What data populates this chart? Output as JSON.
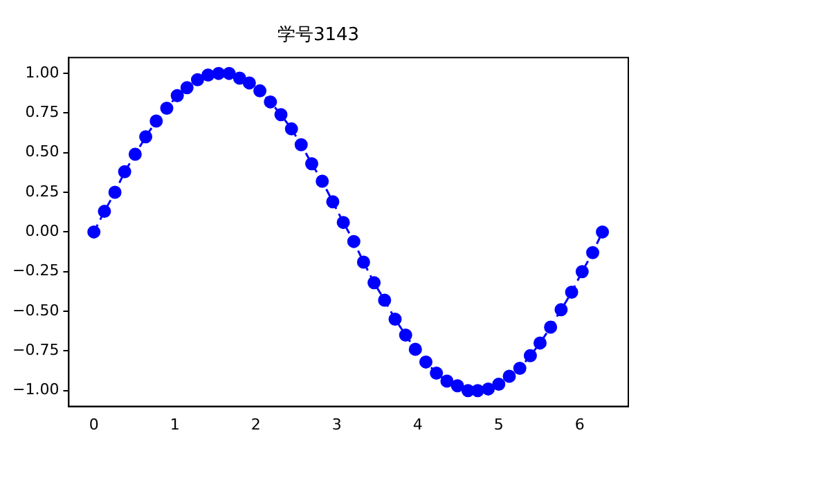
{
  "chart_data": {
    "type": "line",
    "title": "学号3143",
    "x": [
      0,
      0.13,
      0.26,
      0.38,
      0.51,
      0.64,
      0.77,
      0.9,
      1.03,
      1.15,
      1.28,
      1.41,
      1.54,
      1.67,
      1.8,
      1.92,
      2.05,
      2.18,
      2.31,
      2.44,
      2.56,
      2.69,
      2.82,
      2.95,
      3.08,
      3.21,
      3.33,
      3.46,
      3.59,
      3.72,
      3.85,
      3.97,
      4.1,
      4.23,
      4.36,
      4.49,
      4.62,
      4.74,
      4.87,
      5,
      5.13,
      5.26,
      5.39,
      5.51,
      5.64,
      5.77,
      5.9,
      6.03,
      6.16,
      6.28
    ],
    "series": [
      {
        "color": "#0000ff",
        "values": [
          0,
          0.13,
          0.25,
          0.38,
          0.49,
          0.6,
          0.7,
          0.78,
          0.86,
          0.91,
          0.96,
          0.99,
          1,
          1,
          0.97,
          0.94,
          0.89,
          0.82,
          0.74,
          0.65,
          0.55,
          0.43,
          0.32,
          0.19,
          0.06,
          -0.06,
          -0.19,
          -0.32,
          -0.43,
          -0.55,
          -0.65,
          -0.74,
          -0.82,
          -0.89,
          -0.94,
          -0.97,
          -1,
          -1,
          -0.99,
          -0.96,
          -0.91,
          -0.86,
          -0.78,
          -0.7,
          -0.6,
          -0.49,
          -0.38,
          -0.25,
          -0.13,
          0
        ]
      }
    ],
    "xlim": [
      -0.31,
      6.6
    ],
    "xticks": [
      0,
      1,
      2,
      3,
      4,
      5,
      6
    ],
    "ylim": [
      -1.1,
      1.1
    ],
    "yticks": [
      {
        "value": -1,
        "label": "−1.00"
      },
      {
        "value": -0.75,
        "label": "−0.75"
      },
      {
        "value": -0.5,
        "label": "−0.50"
      },
      {
        "value": -0.25,
        "label": "−0.25"
      },
      {
        "value": 0,
        "label": "0.00"
      },
      {
        "value": 0.25,
        "label": "0.25"
      },
      {
        "value": 0.5,
        "label": "0.50"
      },
      {
        "value": 0.75,
        "label": "0.75"
      },
      {
        "value": 1,
        "label": "1.00"
      }
    ],
    "grid": false,
    "legend": false,
    "marker": "circle",
    "line_style": "dashed"
  }
}
